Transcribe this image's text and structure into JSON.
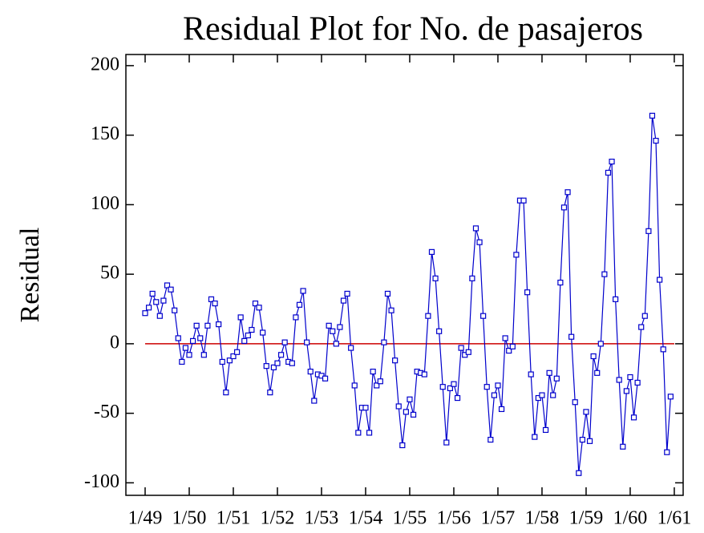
{
  "chart_data": {
    "type": "line",
    "title": "Residual Plot for No. de pasajeros",
    "y_label": "Residual",
    "categories": [
      "1/49",
      null,
      null,
      null,
      null,
      null,
      null,
      null,
      null,
      null,
      null,
      null,
      "1/50",
      null,
      null,
      null,
      null,
      null,
      null,
      null,
      null,
      null,
      null,
      null,
      "1/51",
      null,
      null,
      null,
      null,
      null,
      null,
      null,
      null,
      null,
      null,
      null,
      "1/52",
      null,
      null,
      null,
      null,
      null,
      null,
      null,
      null,
      null,
      null,
      null,
      "1/53",
      null,
      null,
      null,
      null,
      null,
      null,
      null,
      null,
      null,
      null,
      null,
      "1/54",
      null,
      null,
      null,
      null,
      null,
      null,
      null,
      null,
      null,
      null,
      null,
      "1/55",
      null,
      null,
      null,
      null,
      null,
      null,
      null,
      null,
      null,
      null,
      null,
      "1/56",
      null,
      null,
      null,
      null,
      null,
      null,
      null,
      null,
      null,
      null,
      null,
      "1/57",
      null,
      null,
      null,
      null,
      null,
      null,
      null,
      null,
      null,
      null,
      null,
      "1/58",
      null,
      null,
      null,
      null,
      null,
      null,
      null,
      null,
      null,
      null,
      null,
      "1/59",
      null,
      null,
      null,
      null,
      null,
      null,
      null,
      null,
      null,
      null,
      null,
      "1/60",
      null,
      null,
      null,
      null,
      null,
      null,
      null,
      null,
      null,
      null,
      null,
      "1/61"
    ],
    "series": [
      {
        "name": "Residual",
        "color": "#0000cc",
        "values": [
          22,
          26,
          36,
          30,
          20,
          31,
          42,
          39,
          24,
          4,
          -13,
          -3,
          -8,
          2,
          13,
          4,
          -8,
          13,
          32,
          29,
          14,
          -13,
          -35,
          -12,
          -9,
          -6,
          19,
          2,
          6,
          10,
          29,
          26,
          8,
          -16,
          -35,
          -17,
          -14,
          -8,
          1,
          -13,
          -14,
          19,
          28,
          38,
          1,
          -20,
          -41,
          -22,
          -23,
          -25,
          13,
          9,
          0,
          12,
          31,
          36,
          -3,
          -30,
          -64,
          -46,
          -46,
          -64,
          -20,
          -30,
          -27,
          1,
          36,
          24,
          -12,
          -45,
          -73,
          -49,
          -40,
          -51,
          -20,
          -21,
          -22,
          20,
          66,
          47,
          9,
          -31,
          -71,
          -32,
          -29,
          -39,
          -3,
          -8,
          -6,
          47,
          83,
          73,
          20,
          -31,
          -69,
          -37,
          -30,
          -47,
          4,
          -5,
          -2,
          64,
          103,
          103,
          37,
          -22,
          -67,
          -39,
          -37,
          -62,
          -21,
          -37,
          -25,
          44,
          98,
          109,
          5,
          -42,
          -93,
          -69,
          -49,
          -70,
          -9,
          -21,
          0,
          50,
          123,
          131,
          32,
          -26,
          -74,
          -34,
          -24,
          -53,
          -28,
          12,
          20,
          81,
          164,
          146,
          46,
          -4,
          -78,
          -38,
          null
        ]
      }
    ],
    "reference_line": {
      "value": 0,
      "color": "#cc0000"
    },
    "ylim": [
      -109,
      208
    ],
    "yticks": [
      -100,
      -50,
      0,
      50,
      100,
      150,
      200
    ]
  }
}
